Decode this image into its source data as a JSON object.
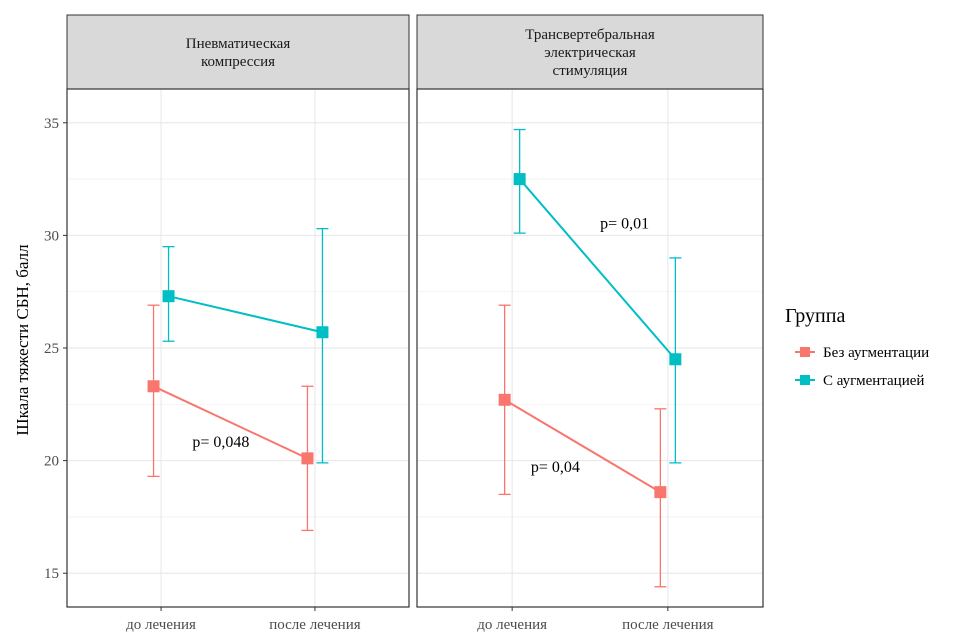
{
  "chart_data": {
    "type": "line",
    "ylabel": "Шкала тяжести СБН, балл",
    "xlabel": "",
    "ylim": [
      13.5,
      36.5
    ],
    "yticks": [
      15,
      20,
      25,
      30,
      35
    ],
    "categories": [
      "до лечения",
      "после лечения"
    ],
    "grid": true,
    "legend": {
      "title": "Группа",
      "position": "right",
      "entries": [
        "Без аугментации",
        "С аугментацией"
      ]
    },
    "colors": {
      "Без аугментации": "#F8766D",
      "С аугментацией": "#00BFC4"
    },
    "panels": [
      {
        "strip": [
          "Пневматическая",
          "компрессия"
        ],
        "series": [
          {
            "name": "Без аугментации",
            "values": [
              23.3,
              20.1
            ],
            "lower": [
              19.3,
              16.9
            ],
            "upper": [
              26.9,
              23.3
            ]
          },
          {
            "name": "С аугментацией",
            "values": [
              27.3,
              25.7
            ],
            "lower": [
              25.3,
              19.9
            ],
            "upper": [
              29.5,
              30.3
            ]
          }
        ],
        "annotations": [
          {
            "text": "p= 0,048",
            "x": 0.45,
            "y": 20.6
          }
        ]
      },
      {
        "strip": [
          "Трансвертебральная",
          "электрическая",
          "стимуляция"
        ],
        "series": [
          {
            "name": "Без аугментации",
            "values": [
              22.7,
              18.6
            ],
            "lower": [
              18.5,
              14.4
            ],
            "upper": [
              26.9,
              22.3
            ]
          },
          {
            "name": "С аугментацией",
            "values": [
              32.5,
              24.5
            ],
            "lower": [
              30.1,
              19.9
            ],
            "upper": [
              34.7,
              29.0
            ]
          }
        ],
        "annotations": [
          {
            "text": "p= 0,01",
            "x": 0.6,
            "y": 30.3
          },
          {
            "text": "p= 0,04",
            "x": 0.4,
            "y": 19.5
          }
        ]
      }
    ]
  }
}
